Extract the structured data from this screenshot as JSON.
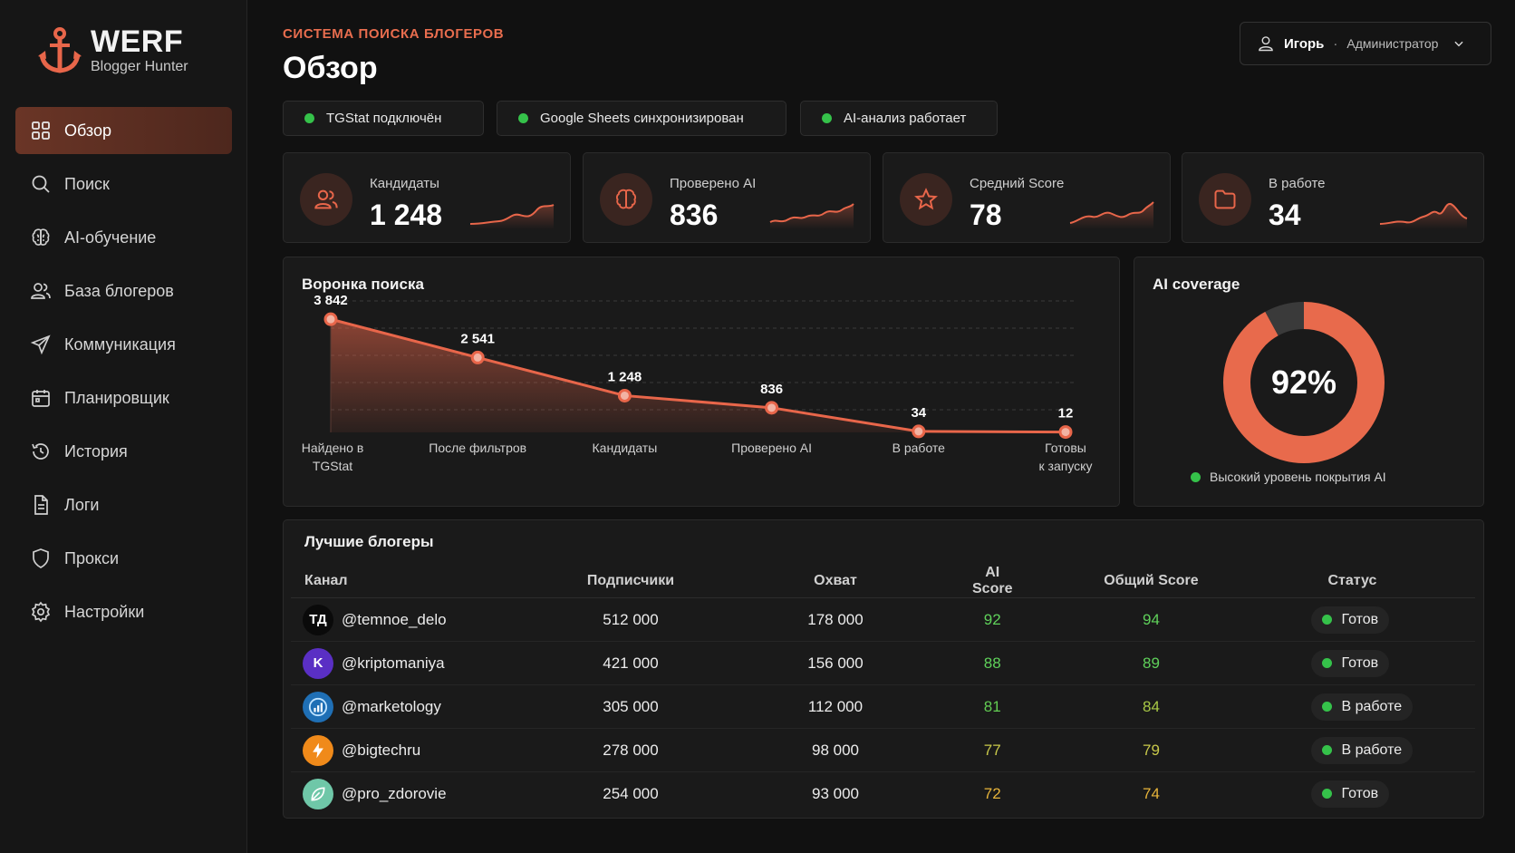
{
  "brand": {
    "name": "WERF",
    "subtitle": "Blogger Hunter"
  },
  "sidebar": {
    "items": [
      {
        "label": "Обзор",
        "icon": "grid-icon",
        "active": true
      },
      {
        "label": "Поиск",
        "icon": "search-icon"
      },
      {
        "label": "AI-обучение",
        "icon": "brain-icon"
      },
      {
        "label": "База блогеров",
        "icon": "users-icon"
      },
      {
        "label": "Коммуникация",
        "icon": "send-icon"
      },
      {
        "label": "Планировщик",
        "icon": "calendar-icon"
      },
      {
        "label": "История",
        "icon": "history-icon"
      },
      {
        "label": "Логи",
        "icon": "document-icon"
      },
      {
        "label": "Прокси",
        "icon": "shield-icon"
      },
      {
        "label": "Настройки",
        "icon": "gear-icon"
      }
    ]
  },
  "header": {
    "eyebrow": "СИСТЕМА ПОИСКА БЛОГЕРОВ",
    "title": "Обзор",
    "user": {
      "name": "Игорь",
      "separator": "·",
      "role": "Администратор"
    }
  },
  "status": [
    {
      "label": "TGStat подключён",
      "color": "#35c24a"
    },
    {
      "label": "Google Sheets синхронизирован",
      "color": "#35c24a"
    },
    {
      "label": "AI-анализ работает",
      "color": "#35c24a"
    }
  ],
  "stats": [
    {
      "label": "Кандидаты",
      "value": "1 248",
      "icon": "users-icon"
    },
    {
      "label": "Проверено AI",
      "value": "836",
      "icon": "brain-icon"
    },
    {
      "label": "Средний Score",
      "value": "78",
      "icon": "star-icon"
    },
    {
      "label": "В работе",
      "value": "34",
      "icon": "folder-icon"
    }
  ],
  "funnel": {
    "title": "Воронка поиска",
    "chart_data": {
      "type": "area",
      "categories": [
        "Найдено в TGStat",
        "После фильтров",
        "Кандидаты",
        "Проверено AI",
        "В работе",
        "Готовы к запуску"
      ],
      "category_lines": [
        [
          "Найдено в",
          "TGStat"
        ],
        [
          "После фильтров"
        ],
        [
          "Кандидаты"
        ],
        [
          "Проверено AI"
        ],
        [
          "В работе"
        ],
        [
          "Готовы",
          "к запуску"
        ]
      ],
      "values": [
        3842,
        2541,
        1248,
        836,
        34,
        12
      ],
      "value_labels": [
        "3 842",
        "2 541",
        "1 248",
        "836",
        "34",
        "12"
      ],
      "ylim": [
        0,
        4000
      ],
      "grid": true,
      "color": "#e8664a"
    }
  },
  "coverage": {
    "title": "AI coverage",
    "value_label": "92%",
    "chart_data": {
      "type": "pie",
      "values": [
        92,
        8
      ],
      "colors": [
        "#e86a4c",
        "#3a3a3a"
      ]
    },
    "note": "Высокий уровень покрытия AI"
  },
  "top_bloggers": {
    "title": "Лучшие блогеры",
    "columns": [
      "Канал",
      "Подписчики",
      "Охват",
      "AI Score",
      "Общий Score",
      "Статус"
    ],
    "rows": [
      {
        "avatar": "ТД",
        "avatar_color": "#0a0a0a",
        "channel": "@temnoe_delo",
        "subscribers": "512 000",
        "reach": "178 000",
        "ai_score": "92",
        "total_score": "94",
        "status": "Готов",
        "score_color": "#5fd15a",
        "total_color": "#5fd15a"
      },
      {
        "avatar": "K",
        "avatar_color": "#5a2fc4",
        "channel": "@kriptomaniya",
        "subscribers": "421 000",
        "reach": "156 000",
        "ai_score": "88",
        "total_score": "89",
        "status": "Готов",
        "score_color": "#5fd15a",
        "total_color": "#5fd15a"
      },
      {
        "avatar": "chart",
        "avatar_color": "#1f6fb5",
        "channel": "@marketology",
        "subscribers": "305 000",
        "reach": "112 000",
        "ai_score": "81",
        "total_score": "84",
        "status": "В работе",
        "score_color": "#62cc52",
        "total_color": "#a8c846"
      },
      {
        "avatar": "bolt",
        "avatar_color": "#f08a1a",
        "channel": "@bigtechru",
        "subscribers": "278 000",
        "reach": "98 000",
        "ai_score": "77",
        "total_score": "79",
        "status": "В работе",
        "score_color": "#c8c84a",
        "total_color": "#c8c84a"
      },
      {
        "avatar": "leaf",
        "avatar_color": "#6fc7a8",
        "channel": "@pro_zdorovie",
        "subscribers": "254 000",
        "reach": "93 000",
        "ai_score": "72",
        "total_score": "74",
        "status": "Готов",
        "score_color": "#e6b33a",
        "total_color": "#e6b33a"
      }
    ]
  }
}
